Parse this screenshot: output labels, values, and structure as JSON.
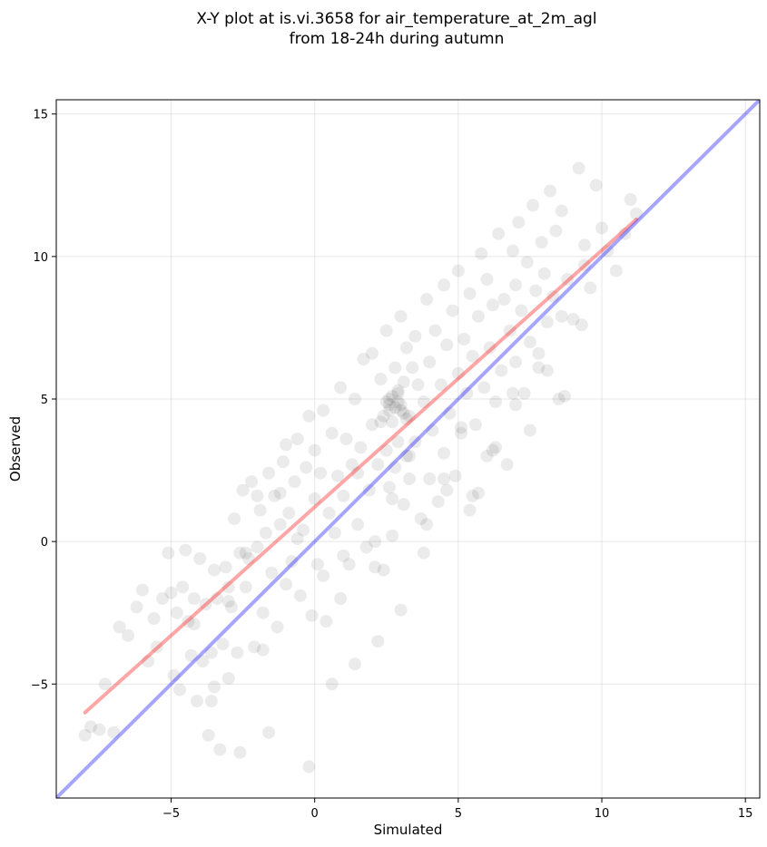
{
  "chart_data": {
    "type": "scatter",
    "title": [
      "X-Y plot at is.vi.3658 for air_temperature_at_2m_agl",
      "from 18-24h during autumn"
    ],
    "xlabel": "Simulated",
    "ylabel": "Observed",
    "xlim": [
      -9,
      15.5
    ],
    "ylim": [
      -9,
      15.5
    ],
    "xticks": [
      -5,
      0,
      5,
      10,
      15
    ],
    "yticks": [
      -5,
      0,
      5,
      10,
      15
    ],
    "xtick_labels": [
      "−5",
      "0",
      "5",
      "10",
      "15"
    ],
    "ytick_labels": [
      "−5",
      "0",
      "5",
      "10",
      "15"
    ],
    "grid": true,
    "point_color": "#000000",
    "point_opacity": 0.08,
    "fit_line": {
      "x": [
        -8,
        11.2
      ],
      "y": [
        -6,
        11.3
      ],
      "color": "#ff0000"
    },
    "identity_line": {
      "x": [
        -9,
        15.5
      ],
      "y": [
        -9,
        15.5
      ],
      "color": "#0000ff"
    },
    "points": {
      "x": [
        -8.0,
        -7.8,
        -7.5,
        -7.3,
        -7.0,
        -6.8,
        -6.5,
        -6.2,
        -6.0,
        -5.8,
        -5.6,
        -5.5,
        -5.3,
        -5.1,
        -5.0,
        -4.9,
        -4.8,
        -4.7,
        -4.6,
        -4.5,
        -4.4,
        -4.3,
        -4.2,
        -4.1,
        -4.0,
        -3.9,
        -3.8,
        -3.7,
        -3.6,
        -3.5,
        -3.5,
        -3.4,
        -3.3,
        -3.2,
        -3.1,
        -3.0,
        -3.0,
        -2.9,
        -2.8,
        -2.7,
        -2.6,
        -2.5,
        -2.4,
        -2.3,
        -2.2,
        -2.1,
        -2.0,
        -2.0,
        -1.9,
        -1.8,
        -1.7,
        -1.6,
        -1.5,
        -1.4,
        -1.3,
        -1.2,
        -1.1,
        -1.0,
        -1.0,
        -0.9,
        -0.8,
        -0.7,
        -0.6,
        -0.5,
        -0.4,
        -0.3,
        -0.2,
        -0.1,
        0.0,
        0.0,
        0.1,
        0.2,
        0.3,
        0.4,
        0.5,
        0.6,
        0.7,
        0.8,
        0.9,
        1.0,
        1.0,
        1.1,
        1.2,
        1.3,
        1.4,
        1.5,
        1.6,
        1.7,
        1.8,
        1.9,
        2.0,
        2.0,
        2.1,
        2.2,
        2.3,
        2.4,
        2.5,
        2.5,
        2.6,
        2.6,
        2.7,
        2.7,
        2.8,
        2.8,
        2.9,
        2.9,
        3.0,
        3.0,
        3.1,
        3.1,
        3.2,
        3.2,
        3.3,
        3.3,
        3.4,
        3.5,
        3.5,
        3.6,
        3.7,
        3.8,
        3.9,
        4.0,
        4.0,
        4.1,
        4.2,
        4.3,
        4.4,
        4.5,
        4.5,
        4.6,
        4.7,
        4.8,
        4.9,
        5.0,
        5.0,
        5.1,
        5.2,
        5.3,
        5.4,
        5.5,
        5.5,
        5.6,
        5.7,
        5.8,
        5.9,
        6.0,
        6.0,
        6.1,
        6.2,
        6.3,
        6.4,
        6.5,
        6.6,
        6.7,
        6.8,
        6.9,
        7.0,
        7.0,
        7.1,
        7.2,
        7.3,
        7.4,
        7.5,
        7.6,
        7.7,
        7.8,
        7.9,
        8.0,
        8.1,
        8.2,
        8.3,
        8.4,
        8.5,
        8.6,
        8.8,
        9.0,
        9.2,
        9.4,
        9.6,
        9.8,
        10.0,
        10.2,
        10.5,
        10.8,
        11.0,
        11.2,
        -4.2,
        -3.6,
        -3.0,
        -2.4,
        -1.8,
        -1.2,
        -0.6,
        0.3,
        0.9,
        1.5,
        2.1,
        2.7,
        3.3,
        3.9,
        4.5,
        5.1,
        5.7,
        6.3,
        6.9,
        7.5,
        8.1,
        8.7,
        9.3,
        -2.6,
        -1.6,
        -0.2,
        0.6,
        1.4,
        2.2,
        3.0,
        3.8,
        4.6,
        5.4,
        6.2,
        7.0,
        7.8,
        8.6,
        9.4,
        2.4,
        2.5,
        2.6,
        2.7,
        2.8,
        2.9,
        3.0,
        3.1,
        2.3,
        2.6,
        2.9,
        3.2
      ],
      "y": [
        -6.8,
        -6.5,
        -6.6,
        -5.0,
        -6.7,
        -3.0,
        -3.3,
        -2.3,
        -1.7,
        -4.2,
        -2.7,
        -3.7,
        -2.0,
        -0.4,
        -1.8,
        -4.7,
        -2.5,
        -5.2,
        -1.6,
        -0.3,
        -2.8,
        -4.0,
        -2.0,
        -5.6,
        -0.6,
        -4.2,
        -2.2,
        -6.8,
        -3.9,
        -5.1,
        -1.0,
        -2.0,
        -7.3,
        -3.6,
        -0.9,
        -1.6,
        -4.8,
        -2.3,
        0.8,
        -3.9,
        -0.4,
        1.8,
        -1.6,
        -0.6,
        2.1,
        -3.7,
        -0.2,
        1.6,
        1.1,
        -2.5,
        0.3,
        2.4,
        -1.1,
        1.6,
        -3.0,
        0.6,
        2.8,
        -1.5,
        3.4,
        1.0,
        -0.7,
        2.1,
        3.6,
        -1.9,
        0.4,
        2.6,
        4.4,
        -2.6,
        1.5,
        3.2,
        -0.8,
        2.4,
        4.6,
        -2.8,
        1.0,
        3.8,
        0.3,
        2.3,
        5.4,
        -0.5,
        1.6,
        3.6,
        -0.8,
        2.7,
        5.0,
        0.6,
        3.3,
        6.4,
        -0.2,
        1.8,
        4.1,
        6.6,
        0.0,
        2.7,
        5.7,
        -1.0,
        3.2,
        7.4,
        1.9,
        4.8,
        0.2,
        4.2,
        6.1,
        2.6,
        5.2,
        3.5,
        4.6,
        7.9,
        1.3,
        5.6,
        3.0,
        6.8,
        4.4,
        2.2,
        6.1,
        7.2,
        3.5,
        5.5,
        0.8,
        4.9,
        8.5,
        2.2,
        6.3,
        3.9,
        7.4,
        1.4,
        5.5,
        9.0,
        3.1,
        6.9,
        4.5,
        8.1,
        2.3,
        5.9,
        9.5,
        3.8,
        7.1,
        5.2,
        8.7,
        1.6,
        6.5,
        4.1,
        7.9,
        10.1,
        5.4,
        9.2,
        3.0,
        6.8,
        8.3,
        4.9,
        10.8,
        6.0,
        8.5,
        2.7,
        7.4,
        10.2,
        9.0,
        6.3,
        11.2,
        8.1,
        5.2,
        9.8,
        7.0,
        11.8,
        8.8,
        6.1,
        10.5,
        9.4,
        7.7,
        12.3,
        8.6,
        10.9,
        5.0,
        11.6,
        9.2,
        7.8,
        13.1,
        10.4,
        8.9,
        12.5,
        11.0,
        10.2,
        9.5,
        10.8,
        12.0,
        11.5,
        -2.9,
        -5.6,
        -2.1,
        -0.4,
        -3.8,
        1.7,
        0.1,
        -1.2,
        -2.0,
        2.4,
        -0.9,
        1.5,
        3.0,
        0.6,
        2.2,
        4.0,
        1.7,
        3.3,
        5.2,
        3.9,
        6.0,
        5.1,
        7.6,
        -7.4,
        -6.7,
        -7.9,
        -5.0,
        -4.3,
        -3.5,
        -2.4,
        -0.4,
        1.8,
        1.1,
        3.2,
        4.8,
        6.6,
        7.9,
        9.7,
        4.4,
        4.9,
        4.6,
        5.1,
        4.7,
        5.3,
        4.8,
        4.5,
        4.2,
        5.0,
        4.9,
        4.3
      ]
    }
  }
}
